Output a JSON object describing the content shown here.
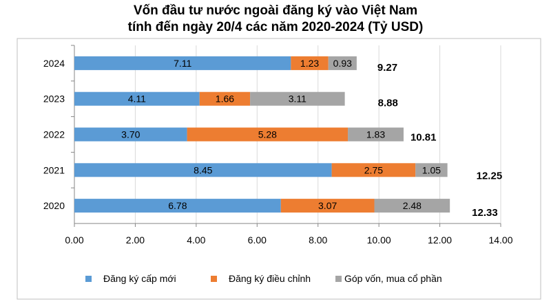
{
  "chart_data": {
    "type": "bar",
    "orientation": "horizontal",
    "stacked": true,
    "title": [
      "Vốn đầu tư nước ngoài đăng ký vào Việt Nam",
      "tính đến ngày 20/4 các năm 2020-2024 (Tỷ USD)"
    ],
    "categories": [
      "2024",
      "2023",
      "2022",
      "2021",
      "2020"
    ],
    "series": [
      {
        "name": "Đăng ký cấp mới",
        "color": "#5b9bd5",
        "values": [
          7.11,
          4.11,
          3.7,
          8.45,
          6.78
        ],
        "labels": [
          "7.11",
          "4.11",
          "3.70",
          "8.45",
          "6.78"
        ]
      },
      {
        "name": "Đăng ký điều chỉnh",
        "color": "#ed7d31",
        "values": [
          1.23,
          1.66,
          5.28,
          2.75,
          3.07
        ],
        "labels": [
          "1.23",
          "1.66",
          "5.28",
          "2.75",
          "3.07"
        ]
      },
      {
        "name": "Góp vốn, mua cổ phần",
        "color": "#a5a5a5",
        "values": [
          0.93,
          3.11,
          1.83,
          1.05,
          2.48
        ],
        "labels": [
          "0.93",
          "3.11",
          "1.83",
          "1.05",
          "2.48"
        ]
      }
    ],
    "totals": [
      "9.27",
      "8.88",
      "10.81",
      "12.25",
      "12.33"
    ],
    "xlim": [
      0,
      14
    ],
    "xticks": [
      "0.00",
      "2.00",
      "4.00",
      "6.00",
      "8.00",
      "10.00",
      "12.00",
      "14.00"
    ],
    "grid": true,
    "legend": "bottom"
  }
}
